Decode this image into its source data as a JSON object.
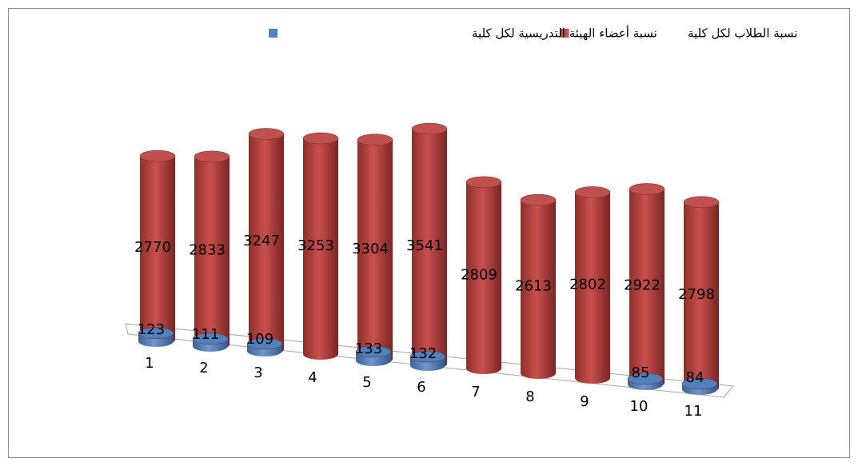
{
  "chart_data": {
    "type": "cylinder",
    "categories": [
      "1",
      "2",
      "3",
      "4",
      "5",
      "6",
      "7",
      "8",
      "9",
      "10",
      "11"
    ],
    "series": [
      {
        "name": "نسبة الطلاب لكل كلية",
        "color": "#c0504d",
        "values": [
          2770,
          2833,
          3247,
          3253,
          3304,
          3541,
          2809,
          2613,
          2802,
          2922,
          2798
        ]
      },
      {
        "name": "نسبة أعضاء الهيئة التدريسية لكل كلية",
        "color": "#4f81bd",
        "values": [
          123,
          111,
          109,
          null,
          133,
          132,
          null,
          null,
          null,
          85,
          84
        ]
      }
    ]
  }
}
